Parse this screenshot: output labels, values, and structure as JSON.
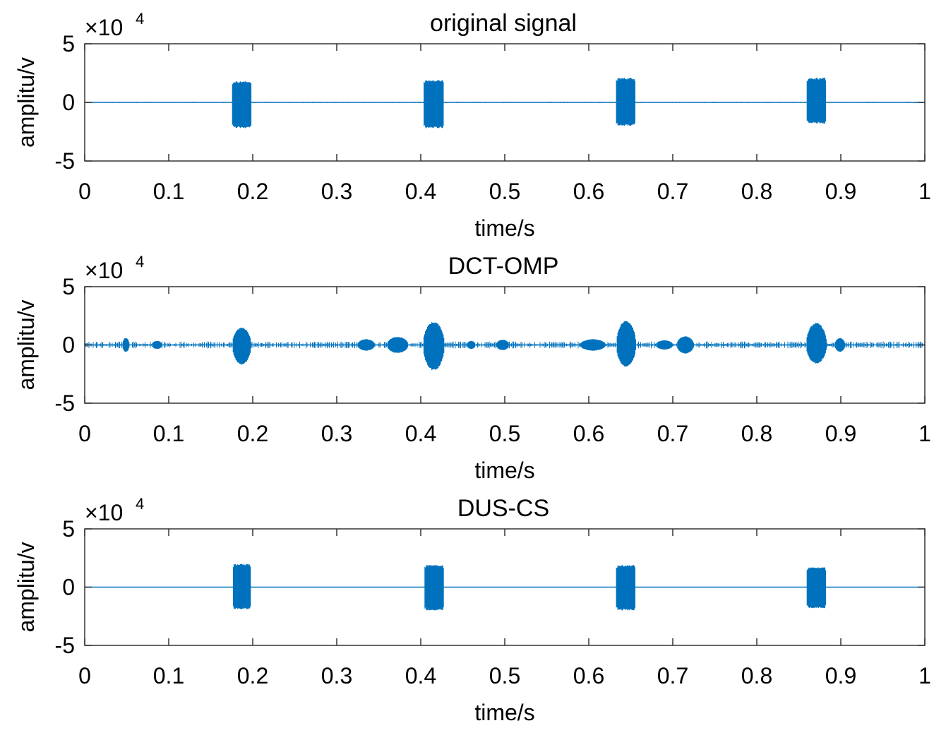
{
  "chart_data": [
    {
      "type": "line",
      "title": "original signal",
      "xlabel": "time/s",
      "ylabel": "amplitu/v",
      "xlim": [
        0,
        1
      ],
      "ylim": [
        -5,
        5
      ],
      "y_multiplier": {
        "base": "×10",
        "exponent": "4"
      },
      "xticks": [
        "0",
        "0.1",
        "0.2",
        "0.3",
        "0.4",
        "0.5",
        "0.6",
        "0.7",
        "0.8",
        "0.9",
        "1"
      ],
      "yticks": [
        "-5",
        "0",
        "5"
      ],
      "line_color": "#0072BD",
      "baseline_noise": 0.05,
      "bursts": [
        {
          "start": 0.176,
          "end": 0.198,
          "amp_pos": 1.8,
          "amp_neg": 2.2,
          "shape": "rect"
        },
        {
          "start": 0.404,
          "end": 0.427,
          "amp_pos": 1.9,
          "amp_neg": 2.2,
          "shape": "rect"
        },
        {
          "start": 0.633,
          "end": 0.655,
          "amp_pos": 2.1,
          "amp_neg": 2.0,
          "shape": "rect"
        },
        {
          "start": 0.86,
          "end": 0.882,
          "amp_pos": 2.1,
          "amp_neg": 1.8,
          "shape": "rect"
        }
      ]
    },
    {
      "type": "line",
      "title": "DCT-OMP",
      "xlabel": "time/s",
      "ylabel": "amplitu/v",
      "xlim": [
        0,
        1
      ],
      "ylim": [
        -5,
        5
      ],
      "y_multiplier": {
        "base": "×10",
        "exponent": "4"
      },
      "xticks": [
        "0",
        "0.1",
        "0.2",
        "0.3",
        "0.4",
        "0.5",
        "0.6",
        "0.7",
        "0.8",
        "0.9",
        "1"
      ],
      "yticks": [
        "-5",
        "0",
        "5"
      ],
      "line_color": "#0072BD",
      "baseline_noise": 0.3,
      "bursts": [
        {
          "start": 0.176,
          "end": 0.198,
          "amp_pos": 1.5,
          "amp_neg": 1.7,
          "shape": "round"
        },
        {
          "start": 0.403,
          "end": 0.428,
          "amp_pos": 2.0,
          "amp_neg": 2.2,
          "shape": "round"
        },
        {
          "start": 0.633,
          "end": 0.656,
          "amp_pos": 2.1,
          "amp_neg": 1.9,
          "shape": "round"
        },
        {
          "start": 0.859,
          "end": 0.883,
          "amp_pos": 1.9,
          "amp_neg": 1.6,
          "shape": "round"
        },
        {
          "start": 0.045,
          "end": 0.053,
          "amp_pos": 0.6,
          "amp_neg": 0.6,
          "shape": "round"
        },
        {
          "start": 0.08,
          "end": 0.092,
          "amp_pos": 0.35,
          "amp_neg": 0.35,
          "shape": "round"
        },
        {
          "start": 0.325,
          "end": 0.345,
          "amp_pos": 0.5,
          "amp_neg": 0.5,
          "shape": "round"
        },
        {
          "start": 0.36,
          "end": 0.385,
          "amp_pos": 0.7,
          "amp_neg": 0.7,
          "shape": "round"
        },
        {
          "start": 0.455,
          "end": 0.465,
          "amp_pos": 0.35,
          "amp_neg": 0.35,
          "shape": "round"
        },
        {
          "start": 0.49,
          "end": 0.505,
          "amp_pos": 0.45,
          "amp_neg": 0.45,
          "shape": "round"
        },
        {
          "start": 0.59,
          "end": 0.62,
          "amp_pos": 0.5,
          "amp_neg": 0.5,
          "shape": "round"
        },
        {
          "start": 0.68,
          "end": 0.7,
          "amp_pos": 0.4,
          "amp_neg": 0.4,
          "shape": "round"
        },
        {
          "start": 0.705,
          "end": 0.725,
          "amp_pos": 0.75,
          "amp_neg": 0.75,
          "shape": "round"
        },
        {
          "start": 0.893,
          "end": 0.905,
          "amp_pos": 0.6,
          "amp_neg": 0.6,
          "shape": "round"
        }
      ]
    },
    {
      "type": "line",
      "title": "DUS-CS",
      "xlabel": "time/s",
      "ylabel": "amplitu/v",
      "xlim": [
        0,
        1
      ],
      "ylim": [
        -5,
        5
      ],
      "y_multiplier": {
        "base": "×10",
        "exponent": "4"
      },
      "xticks": [
        "0",
        "0.1",
        "0.2",
        "0.3",
        "0.4",
        "0.5",
        "0.6",
        "0.7",
        "0.8",
        "0.9",
        "1"
      ],
      "yticks": [
        "-5",
        "0",
        "5"
      ],
      "line_color": "#0072BD",
      "baseline_noise": 0.0,
      "bursts": [
        {
          "start": 0.177,
          "end": 0.198,
          "amp_pos": 2.0,
          "amp_neg": 1.9,
          "shape": "rect"
        },
        {
          "start": 0.405,
          "end": 0.427,
          "amp_pos": 1.9,
          "amp_neg": 2.0,
          "shape": "rect"
        },
        {
          "start": 0.633,
          "end": 0.655,
          "amp_pos": 1.9,
          "amp_neg": 2.0,
          "shape": "rect"
        },
        {
          "start": 0.86,
          "end": 0.882,
          "amp_pos": 1.7,
          "amp_neg": 1.8,
          "shape": "rect"
        }
      ]
    }
  ]
}
